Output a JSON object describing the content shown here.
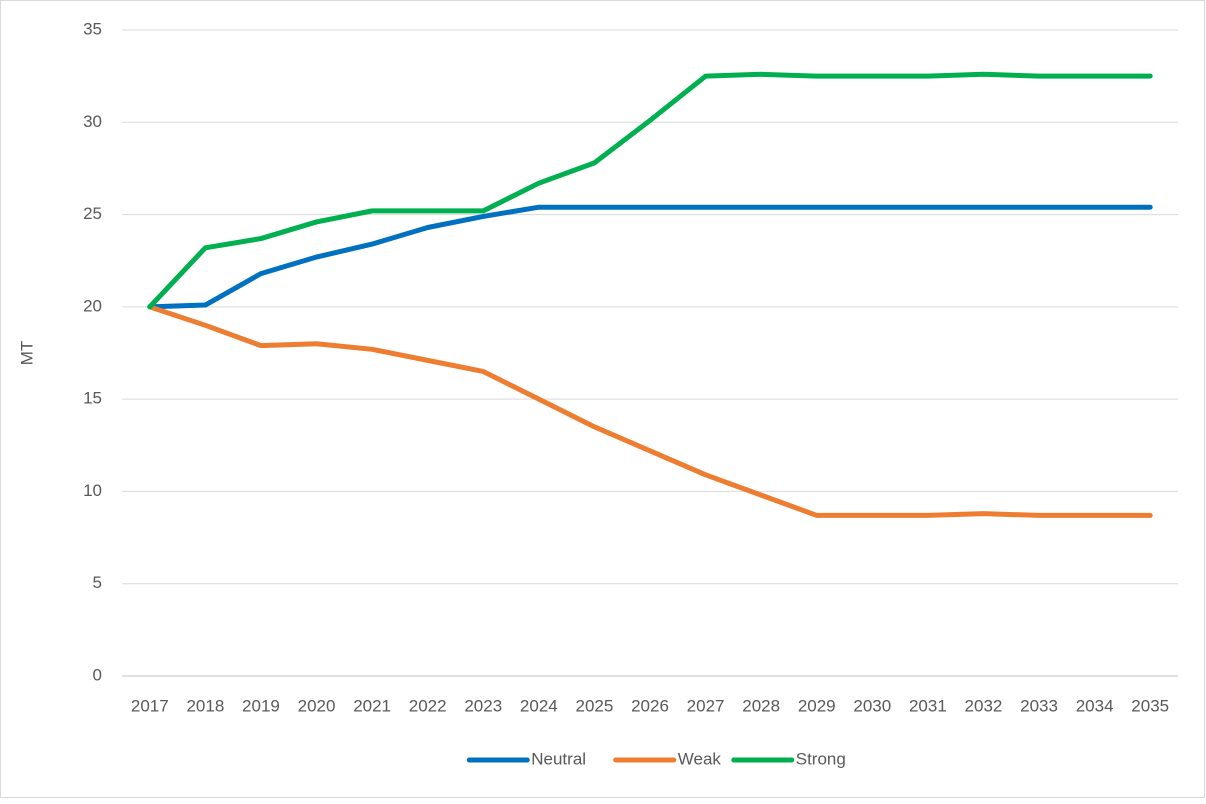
{
  "chart_data": {
    "type": "line",
    "y_label": "MT",
    "categories": [
      "2017",
      "2018",
      "2019",
      "2020",
      "2021",
      "2022",
      "2023",
      "2024",
      "2025",
      "2026",
      "2027",
      "2028",
      "2029",
      "2030",
      "2031",
      "2032",
      "2033",
      "2034",
      "2035"
    ],
    "series": [
      {
        "name": "Neutral",
        "color": "#0070c0",
        "values": [
          20,
          20.1,
          21.8,
          22.7,
          23.4,
          24.3,
          24.9,
          25.4,
          25.4,
          25.4,
          25.4,
          25.4,
          25.4,
          25.4,
          25.4,
          25.4,
          25.4,
          25.4,
          25.4
        ]
      },
      {
        "name": "Weak",
        "color": "#ed7d31",
        "values": [
          20,
          19.0,
          17.9,
          18.0,
          17.7,
          17.1,
          16.5,
          15.0,
          13.5,
          12.2,
          10.9,
          9.8,
          8.7,
          8.7,
          8.7,
          8.8,
          8.7,
          8.7,
          8.7
        ]
      },
      {
        "name": "Strong",
        "color": "#00b050",
        "values": [
          20,
          23.2,
          23.7,
          24.6,
          25.2,
          25.2,
          25.2,
          26.7,
          27.8,
          30.1,
          32.5,
          32.6,
          32.5,
          32.5,
          32.5,
          32.6,
          32.5,
          32.5,
          32.5
        ]
      }
    ],
    "ylim": [
      0,
      35
    ],
    "yticks": [
      0,
      5,
      10,
      15,
      20,
      25,
      30,
      35
    ],
    "grid": true,
    "legend": "bottom"
  }
}
